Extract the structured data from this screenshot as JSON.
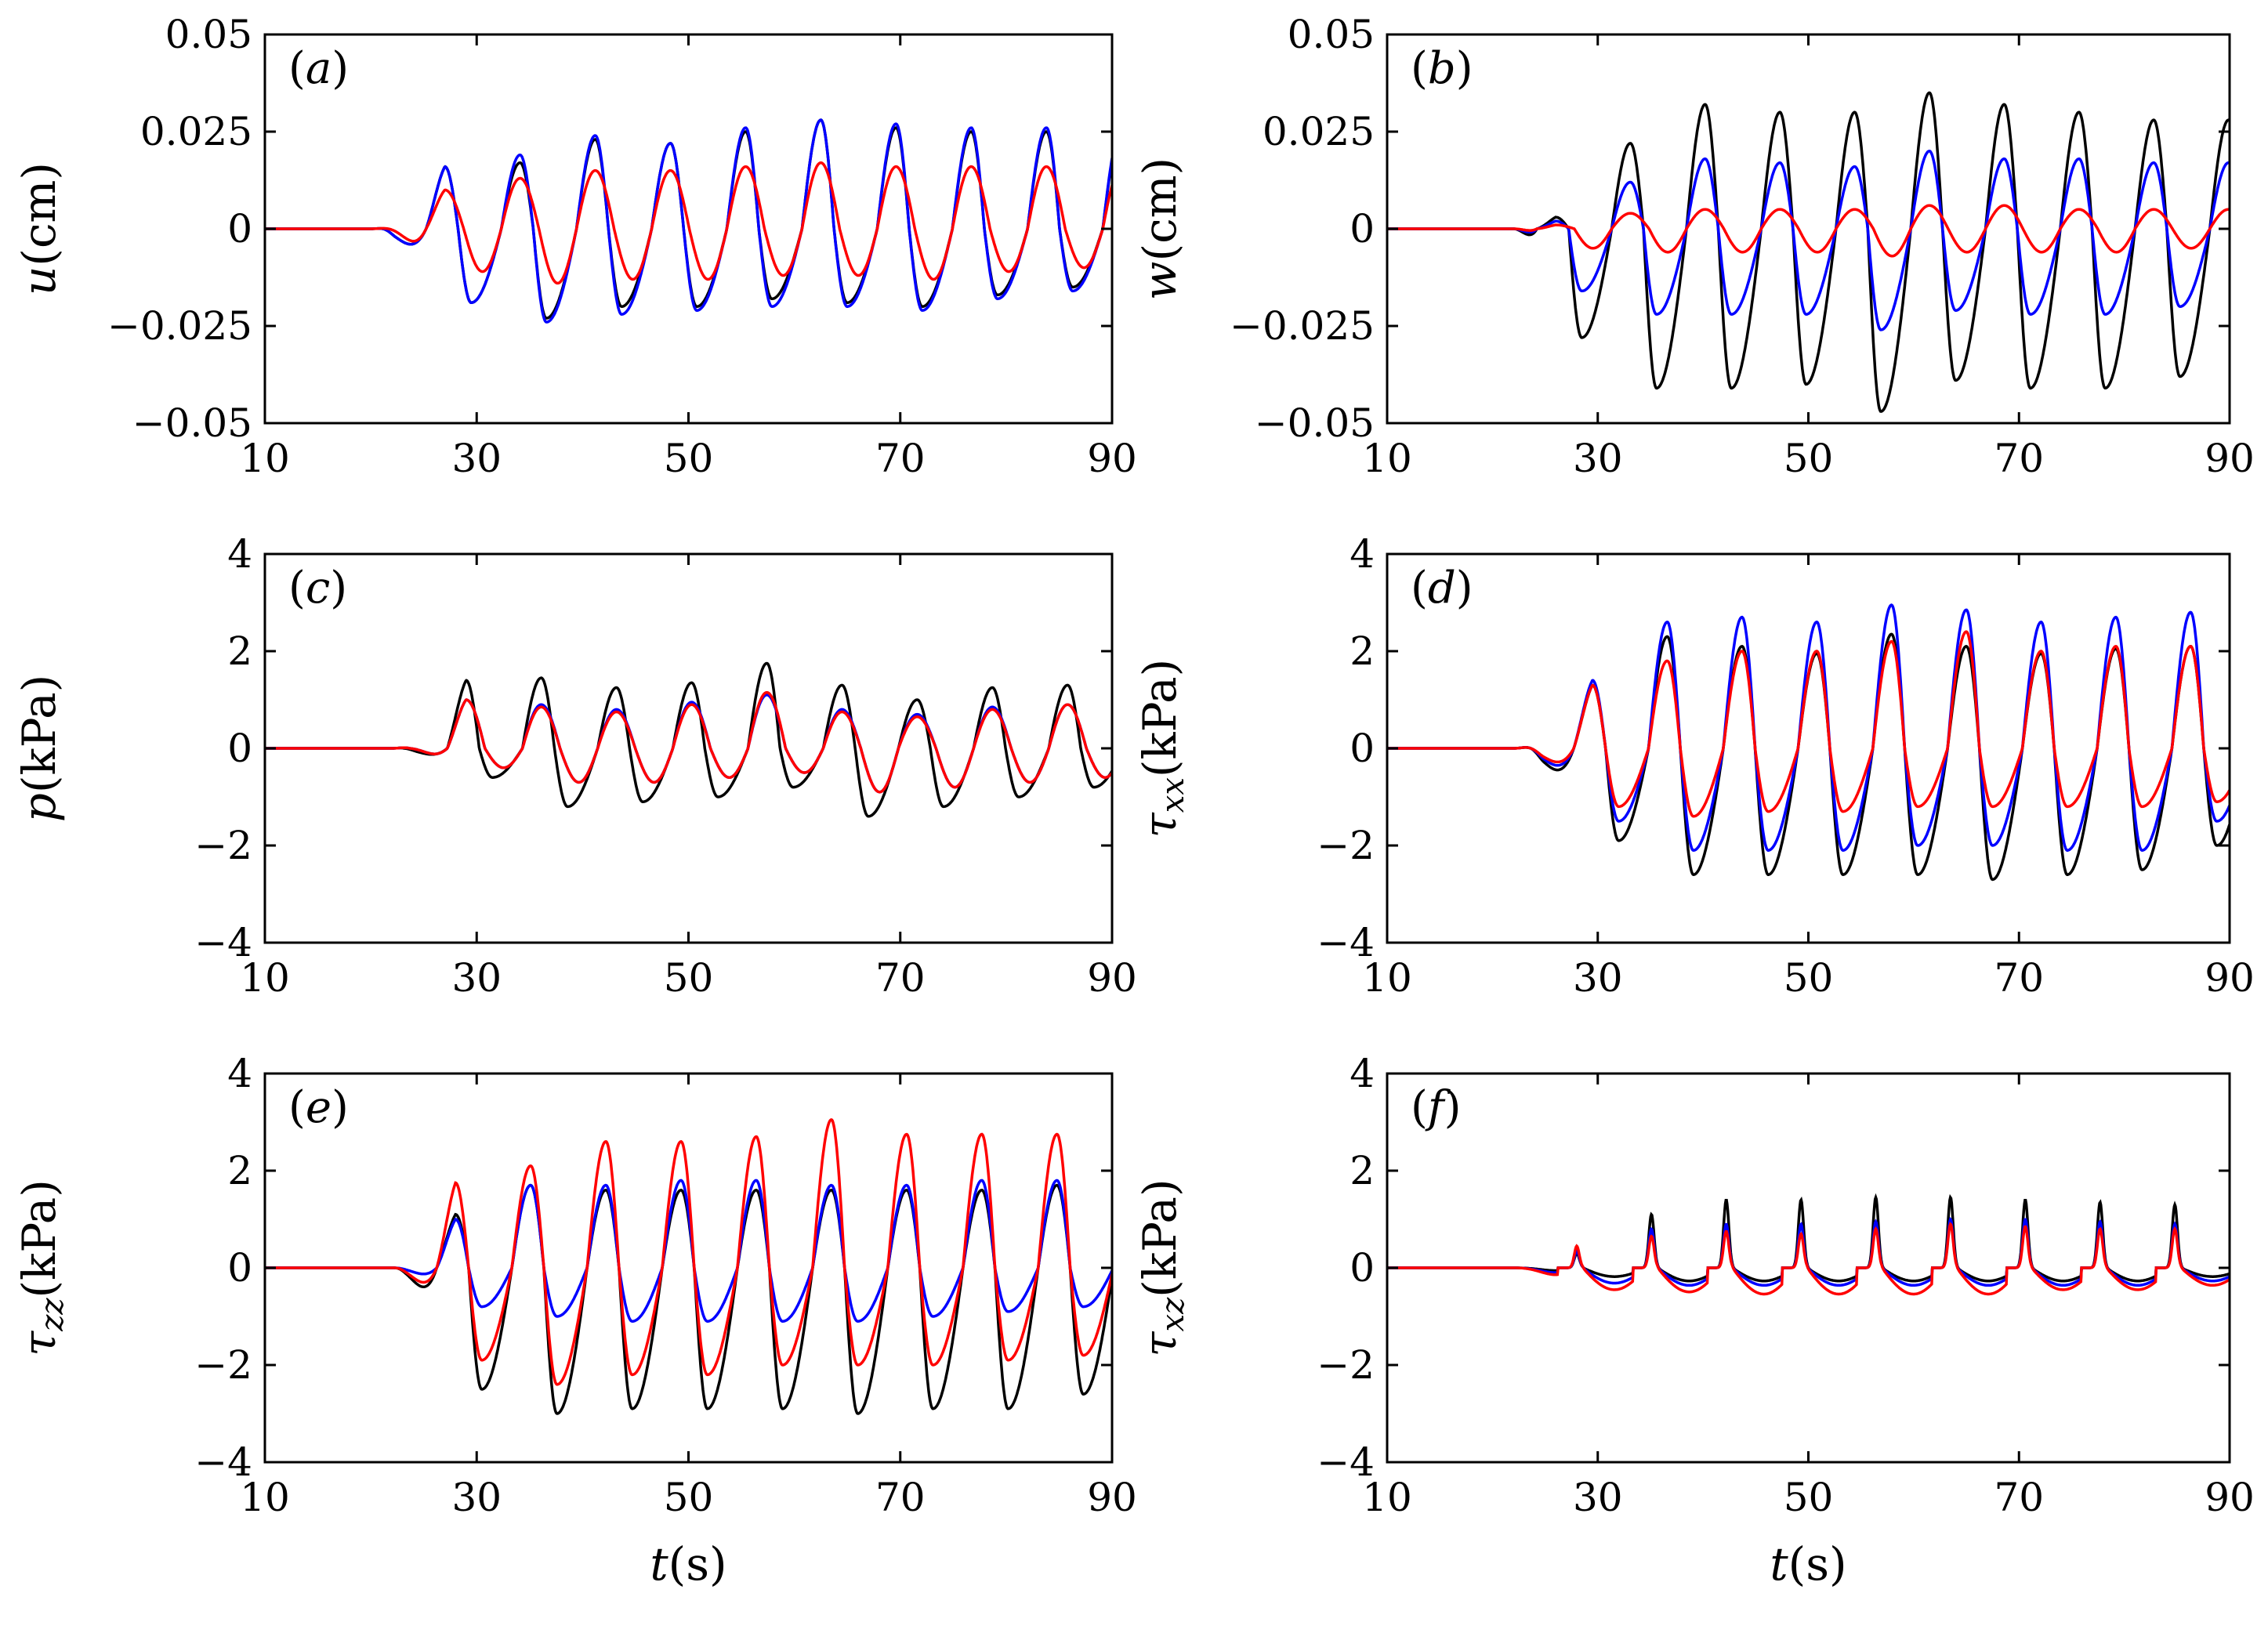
{
  "figure": {
    "xlabel_var": "t",
    "xlabel_unit": "(s)",
    "series_colors": [
      "#000000",
      "#0000ff",
      "#ff0000"
    ]
  },
  "chart_data": [
    {
      "type": "line",
      "panel_label_open": "(",
      "panel_label_letter": "a",
      "panel_label_close": ")",
      "ylabel_var": "u",
      "ylabel_sub": "",
      "ylabel_unit": "(cm)",
      "xlim": [
        10,
        90
      ],
      "ylim": [
        -0.05,
        0.05
      ],
      "xticks": [
        10,
        30,
        50,
        70,
        90
      ],
      "xtick_labels": [
        "10",
        "30",
        "50",
        "70",
        "90"
      ],
      "yticks": [
        -0.05,
        -0.025,
        0,
        0.025,
        0.05
      ],
      "ytick_labels": [
        "−0.05",
        "−0.025",
        "0",
        "0.025",
        "0.05"
      ],
      "show_xlabel": false,
      "onset": 20,
      "first_peak_t": 27,
      "period": 7.1,
      "series": [
        {
          "name": "black",
          "color": "#000000",
          "amps": [
            0.016,
            0.017,
            0.023,
            0.022,
            0.025,
            0.028,
            0.026,
            0.025,
            0.025
          ],
          "troughs": [
            -0.019,
            -0.023,
            -0.02,
            -0.02,
            -0.018,
            -0.019,
            -0.02,
            -0.017,
            -0.015
          ],
          "shape": "saw"
        },
        {
          "name": "blue",
          "color": "#0000ff",
          "amps": [
            0.016,
            0.019,
            0.024,
            0.022,
            0.026,
            0.028,
            0.027,
            0.026,
            0.026
          ],
          "troughs": [
            -0.019,
            -0.024,
            -0.022,
            -0.021,
            -0.02,
            -0.02,
            -0.021,
            -0.018,
            -0.016
          ],
          "shape": "saw"
        },
        {
          "name": "red",
          "color": "#ff0000",
          "amps": [
            0.01,
            0.013,
            0.015,
            0.015,
            0.016,
            0.017,
            0.016,
            0.016,
            0.016
          ],
          "troughs": [
            -0.011,
            -0.014,
            -0.013,
            -0.013,
            -0.012,
            -0.012,
            -0.013,
            -0.011,
            -0.01
          ],
          "shape": "sine"
        }
      ]
    },
    {
      "type": "line",
      "panel_label_open": "(",
      "panel_label_letter": "b",
      "panel_label_close": ")",
      "ylabel_var": "w",
      "ylabel_sub": "",
      "ylabel_unit": "(cm)",
      "xlim": [
        10,
        90
      ],
      "ylim": [
        -0.05,
        0.05
      ],
      "xticks": [
        10,
        30,
        50,
        70,
        90
      ],
      "xtick_labels": [
        "10",
        "30",
        "50",
        "70",
        "90"
      ],
      "yticks": [
        -0.05,
        -0.025,
        0,
        0.025,
        0.05
      ],
      "ytick_labels": [
        "−0.05",
        "−0.025",
        "0",
        "0.025",
        "0.05"
      ],
      "show_xlabel": false,
      "onset": 22,
      "first_peak_t": 26,
      "period": 7.1,
      "series": [
        {
          "name": "black",
          "color": "#000000",
          "amps": [
            0.003,
            0.022,
            0.032,
            0.03,
            0.03,
            0.035,
            0.032,
            0.03,
            0.028
          ],
          "troughs": [
            -0.028,
            -0.041,
            -0.041,
            -0.04,
            -0.047,
            -0.039,
            -0.041,
            -0.041,
            -0.038
          ],
          "shape": "saw"
        },
        {
          "name": "blue",
          "color": "#0000ff",
          "amps": [
            0.002,
            0.012,
            0.018,
            0.017,
            0.016,
            0.02,
            0.018,
            0.018,
            0.017
          ],
          "troughs": [
            -0.016,
            -0.022,
            -0.022,
            -0.022,
            -0.026,
            -0.021,
            -0.022,
            -0.022,
            -0.02
          ],
          "shape": "saw"
        },
        {
          "name": "red",
          "color": "#ff0000",
          "amps": [
            0.001,
            0.004,
            0.005,
            0.005,
            0.005,
            0.006,
            0.006,
            0.005,
            0.005
          ],
          "troughs": [
            -0.005,
            -0.006,
            -0.006,
            -0.006,
            -0.007,
            -0.006,
            -0.006,
            -0.006,
            -0.005
          ],
          "shape": "sine"
        }
      ]
    },
    {
      "type": "line",
      "panel_label_open": "(",
      "panel_label_letter": "c",
      "panel_label_close": ")",
      "ylabel_var": "p",
      "ylabel_sub": "",
      "ylabel_unit": "(kPa)",
      "xlim": [
        10,
        90
      ],
      "ylim": [
        -4,
        4
      ],
      "xticks": [
        10,
        30,
        50,
        70,
        90
      ],
      "xtick_labels": [
        "10",
        "30",
        "50",
        "70",
        "90"
      ],
      "yticks": [
        -4,
        -2,
        0,
        2,
        4
      ],
      "ytick_labels": [
        "−4",
        "−2",
        "0",
        "2",
        "4"
      ],
      "show_xlabel": false,
      "onset": 22,
      "first_peak_t": 29,
      "period": 7.1,
      "series": [
        {
          "name": "black",
          "color": "#000000",
          "amps": [
            1.4,
            1.45,
            1.25,
            1.35,
            1.75,
            1.3,
            1.0,
            1.25,
            1.3
          ],
          "troughs": [
            -0.6,
            -1.2,
            -1.1,
            -1.0,
            -0.8,
            -1.4,
            -1.2,
            -1.0,
            -0.8
          ],
          "shape": "saw"
        },
        {
          "name": "blue",
          "color": "#0000ff",
          "amps": [
            1.0,
            0.9,
            0.8,
            0.95,
            1.1,
            0.8,
            0.7,
            0.85,
            0.9
          ],
          "troughs": [
            -0.4,
            -0.7,
            -0.7,
            -0.6,
            -0.5,
            -0.9,
            -0.8,
            -0.7,
            -0.6
          ],
          "shape": "sine"
        },
        {
          "name": "red",
          "color": "#ff0000",
          "amps": [
            1.0,
            0.85,
            0.75,
            0.9,
            1.15,
            0.75,
            0.65,
            0.8,
            0.9
          ],
          "troughs": [
            -0.4,
            -0.7,
            -0.7,
            -0.6,
            -0.5,
            -0.9,
            -0.8,
            -0.7,
            -0.6
          ],
          "shape": "sine"
        }
      ]
    },
    {
      "type": "line",
      "panel_label_open": "(",
      "panel_label_letter": "d",
      "panel_label_close": ")",
      "ylabel_var": "τ",
      "ylabel_sub": "xx",
      "ylabel_unit": "(kPa)",
      "xlim": [
        10,
        90
      ],
      "ylim": [
        -4,
        4
      ],
      "xticks": [
        10,
        30,
        50,
        70,
        90
      ],
      "xtick_labels": [
        "10",
        "30",
        "50",
        "70",
        "90"
      ],
      "yticks": [
        -4,
        -2,
        0,
        2,
        4
      ],
      "ytick_labels": [
        "−4",
        "−2",
        "0",
        "2",
        "4"
      ],
      "show_xlabel": false,
      "onset": 22,
      "first_peak_t": 29.5,
      "period": 7.1,
      "series": [
        {
          "name": "black",
          "color": "#000000",
          "amps": [
            1.3,
            2.3,
            2.1,
            1.95,
            2.35,
            2.1,
            1.95,
            2.05,
            2.1
          ],
          "troughs": [
            -1.9,
            -2.6,
            -2.6,
            -2.6,
            -2.6,
            -2.7,
            -2.6,
            -2.5,
            -2.0
          ],
          "shape": "saw"
        },
        {
          "name": "blue",
          "color": "#0000ff",
          "amps": [
            1.4,
            2.6,
            2.7,
            2.6,
            2.95,
            2.85,
            2.6,
            2.7,
            2.8
          ],
          "troughs": [
            -1.5,
            -2.1,
            -2.1,
            -2.1,
            -2.0,
            -2.0,
            -2.1,
            -2.1,
            -1.5
          ],
          "shape": "saw"
        },
        {
          "name": "red",
          "color": "#ff0000",
          "amps": [
            1.3,
            1.8,
            2.0,
            2.0,
            2.2,
            2.4,
            2.0,
            2.1,
            2.1
          ],
          "troughs": [
            -1.2,
            -1.4,
            -1.3,
            -1.3,
            -1.2,
            -1.2,
            -1.2,
            -1.2,
            -1.1
          ],
          "shape": "saw"
        }
      ]
    },
    {
      "type": "line",
      "panel_label_open": "(",
      "panel_label_letter": "e",
      "panel_label_close": ")",
      "ylabel_var": "τ",
      "ylabel_sub": "zz",
      "ylabel_unit": "(kPa)",
      "xlim": [
        10,
        90
      ],
      "ylim": [
        -4,
        4
      ],
      "xticks": [
        10,
        30,
        50,
        70,
        90
      ],
      "xtick_labels": [
        "10",
        "30",
        "50",
        "70",
        "90"
      ],
      "yticks": [
        -4,
        -2,
        0,
        2,
        4
      ],
      "ytick_labels": [
        "−4",
        "−2",
        "0",
        "2",
        "4"
      ],
      "show_xlabel": true,
      "onset": 22,
      "first_peak_t": 28,
      "period": 7.1,
      "series": [
        {
          "name": "black",
          "color": "#000000",
          "amps": [
            1.1,
            1.7,
            1.6,
            1.6,
            1.6,
            1.6,
            1.6,
            1.6,
            1.7
          ],
          "troughs": [
            -2.5,
            -3.0,
            -2.9,
            -2.9,
            -2.9,
            -3.0,
            -2.9,
            -2.9,
            -2.6
          ],
          "shape": "saw"
        },
        {
          "name": "blue",
          "color": "#0000ff",
          "amps": [
            1.0,
            1.7,
            1.7,
            1.8,
            1.8,
            1.7,
            1.7,
            1.8,
            1.8
          ],
          "troughs": [
            -0.8,
            -1.0,
            -1.1,
            -1.1,
            -1.1,
            -1.1,
            -1.0,
            -0.9,
            -0.8
          ],
          "shape": "saw"
        },
        {
          "name": "red",
          "color": "#ff0000",
          "amps": [
            1.75,
            2.1,
            2.6,
            2.6,
            2.7,
            3.05,
            2.75,
            2.75,
            2.75
          ],
          "troughs": [
            -1.9,
            -2.4,
            -2.2,
            -2.2,
            -2.0,
            -2.0,
            -2.0,
            -1.9,
            -1.8
          ],
          "shape": "saw"
        }
      ]
    },
    {
      "type": "line",
      "panel_label_open": "(",
      "panel_label_letter": "f",
      "panel_label_close": ")",
      "ylabel_var": "τ",
      "ylabel_sub": "xz",
      "ylabel_unit": "(kPa)",
      "xlim": [
        10,
        90
      ],
      "ylim": [
        -4,
        4
      ],
      "xticks": [
        10,
        30,
        50,
        70,
        90
      ],
      "xtick_labels": [
        "10",
        "30",
        "50",
        "70",
        "90"
      ],
      "yticks": [
        -4,
        -2,
        0,
        2,
        4
      ],
      "ytick_labels": [
        "−4",
        "−2",
        "0",
        "2",
        "4"
      ],
      "show_xlabel": true,
      "onset": 22,
      "first_peak_t": 28,
      "period": 7.1,
      "series": [
        {
          "name": "black",
          "color": "#000000",
          "amps": [
            0.3,
            1.1,
            1.4,
            1.4,
            1.45,
            1.45,
            1.4,
            1.35,
            1.3
          ],
          "troughs": [
            -0.2,
            -0.3,
            -0.3,
            -0.3,
            -0.3,
            -0.3,
            -0.3,
            -0.3,
            -0.2
          ],
          "shape": "spike"
        },
        {
          "name": "blue",
          "color": "#0000ff",
          "amps": [
            0.35,
            0.8,
            0.9,
            0.9,
            0.95,
            1.0,
            1.0,
            0.95,
            0.9
          ],
          "troughs": [
            -0.35,
            -0.4,
            -0.4,
            -0.4,
            -0.4,
            -0.4,
            -0.4,
            -0.4,
            -0.3
          ],
          "shape": "spike"
        },
        {
          "name": "red",
          "color": "#ff0000",
          "amps": [
            0.45,
            0.65,
            0.75,
            0.7,
            0.8,
            0.9,
            0.85,
            0.8,
            0.8
          ],
          "troughs": [
            -0.5,
            -0.55,
            -0.6,
            -0.6,
            -0.6,
            -0.6,
            -0.5,
            -0.5,
            -0.4
          ],
          "shape": "spike"
        }
      ]
    }
  ]
}
